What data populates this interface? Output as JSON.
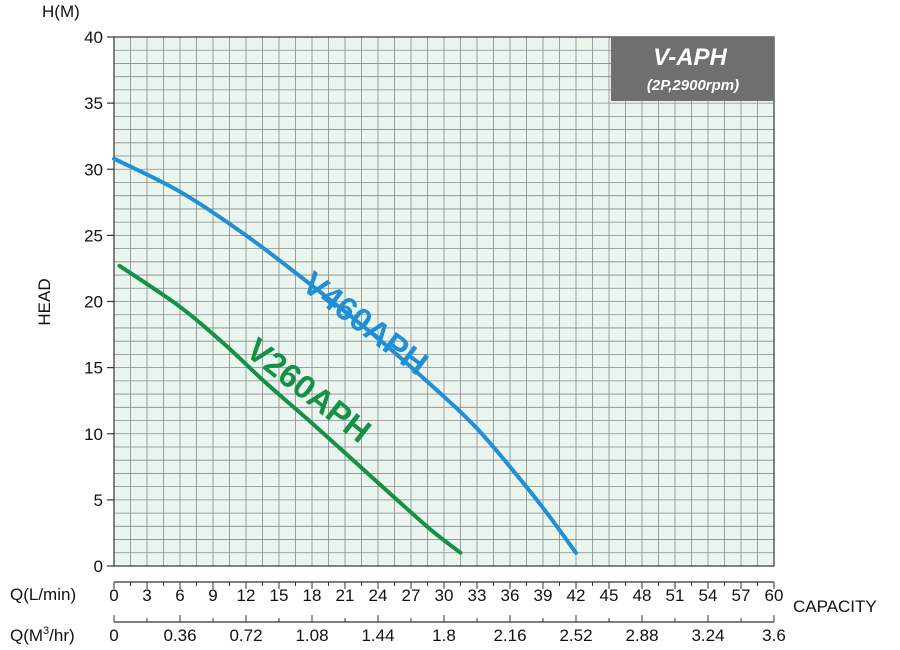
{
  "chart_data": {
    "type": "line",
    "title": "V-APH",
    "subtitle": "(2P,2900rpm)",
    "ylabel": "HEAD",
    "yunit": "H(M)",
    "xlabel": "CAPACITY",
    "x_primary_label": "Q(L/min)",
    "x_secondary_label_prefix": "Q(M",
    "x_secondary_label_sup": "3",
    "x_secondary_label_suffix": "/hr)",
    "xlim": [
      0,
      60
    ],
    "ylim": [
      0,
      40
    ],
    "x_ticks": [
      "0",
      "3",
      "6",
      "9",
      "12",
      "15",
      "18",
      "21",
      "24",
      "27",
      "30",
      "33",
      "36",
      "39",
      "42",
      "45",
      "48",
      "51",
      "54",
      "57",
      "60"
    ],
    "x2_ticks": [
      "0",
      "0.36",
      "0.72",
      "1.08",
      "1.44",
      "1.8",
      "2.16",
      "2.52",
      "2.88",
      "3.24",
      "3.6"
    ],
    "y_ticks": [
      "0",
      "5",
      "10",
      "15",
      "20",
      "25",
      "30",
      "35",
      "40"
    ],
    "grid": true,
    "series": [
      {
        "name": "V460APH",
        "color": "#1f8fd6",
        "points": [
          [
            0,
            30.8
          ],
          [
            6,
            28.3
          ],
          [
            12,
            25.0
          ],
          [
            18,
            21.2
          ],
          [
            24,
            17.2
          ],
          [
            30,
            12.8
          ],
          [
            33,
            10.4
          ],
          [
            36,
            7.5
          ],
          [
            39,
            4.4
          ],
          [
            42,
            1.0
          ]
        ]
      },
      {
        "name": "V260APH",
        "color": "#139146",
        "points": [
          [
            0.5,
            22.7
          ],
          [
            6,
            19.6
          ],
          [
            10,
            16.8
          ],
          [
            14,
            13.7
          ],
          [
            18,
            10.8
          ],
          [
            22,
            7.8
          ],
          [
            26,
            4.8
          ],
          [
            29,
            2.6
          ],
          [
            31.5,
            1.0
          ]
        ]
      }
    ],
    "grid_color": "#8a8a8a",
    "plot_background": "#eaf5ee",
    "badge_background": "#6f6f6f"
  }
}
